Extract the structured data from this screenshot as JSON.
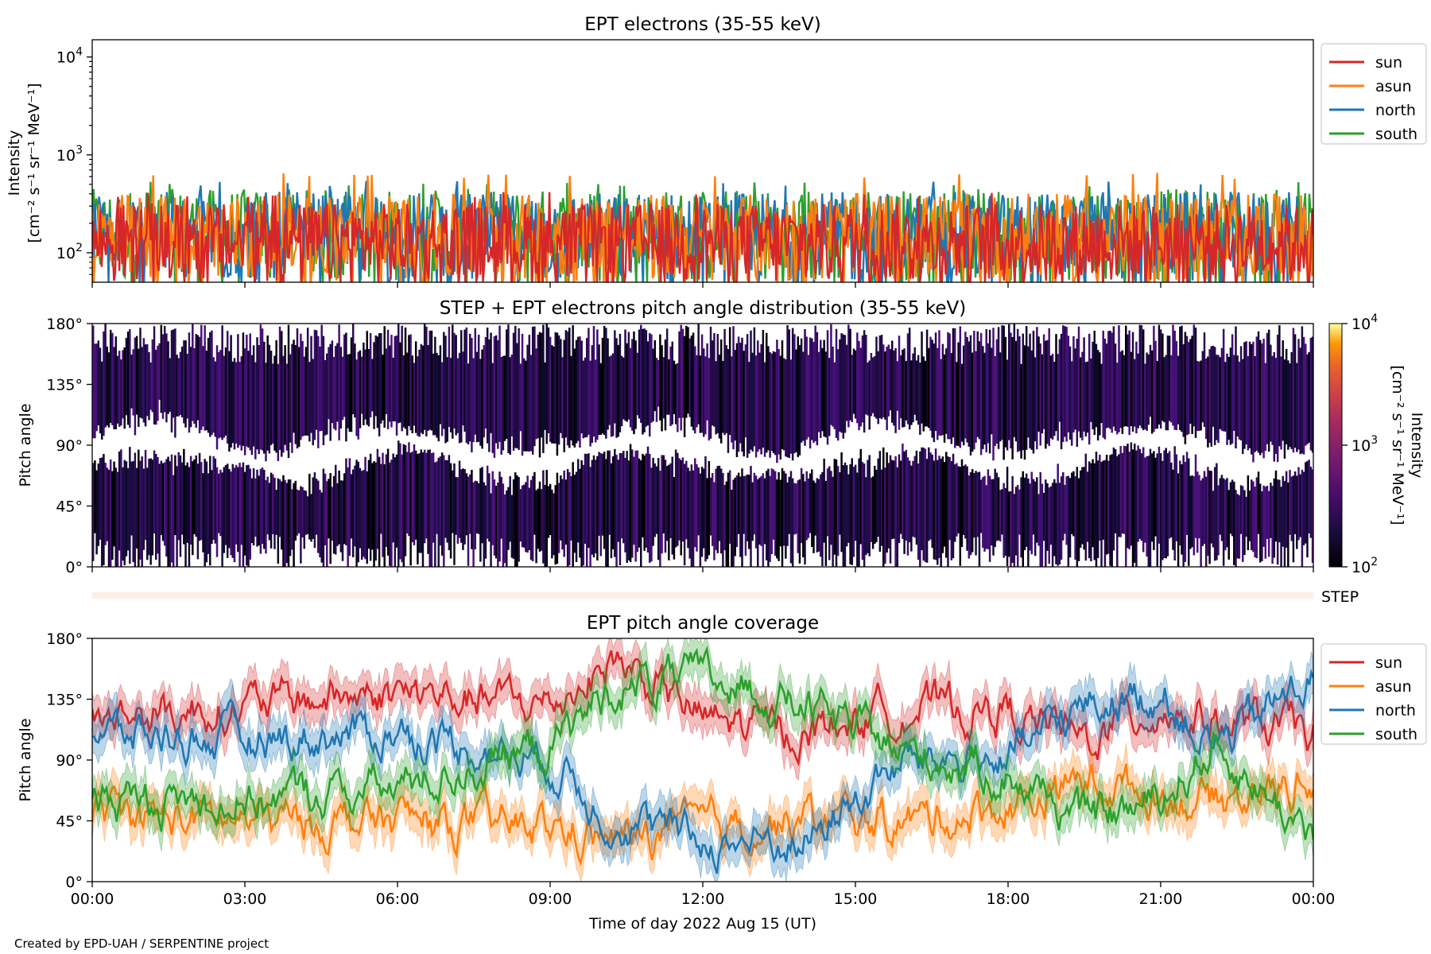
{
  "figure": {
    "credit": "Created by EPD-UAH / SERPENTINE project",
    "xlabel": "Time of day 2022 Aug 15 (UT)",
    "x_ticks": [
      "00:00",
      "03:00",
      "06:00",
      "09:00",
      "12:00",
      "15:00",
      "18:00",
      "21:00",
      "00:00"
    ]
  },
  "colors": {
    "sun": "#d62728",
    "asun": "#ff7f0e",
    "north": "#1f77b4",
    "south": "#2ca02c",
    "step_band": "#fdeee6"
  },
  "chart_data": [
    {
      "type": "line",
      "title": "EPT electrons (35-55 keV)",
      "ylabel_line1": "Intensity",
      "ylabel_line2": "[cm⁻² s⁻¹ sr⁻¹ MeV⁻¹]",
      "yscale": "log",
      "ylim": [
        50,
        15000
      ],
      "xlim_hours": [
        0,
        24
      ],
      "y_ticks": [
        {
          "value": 100,
          "base": "10",
          "exp": "2"
        },
        {
          "value": 1000,
          "base": "10",
          "exp": "3"
        },
        {
          "value": 10000,
          "base": "10",
          "exp": "4"
        }
      ],
      "legend": {
        "placement": "outside-right-top",
        "entries": [
          "sun",
          "asun",
          "north",
          "south"
        ]
      },
      "series": [
        {
          "name": "south",
          "typical_range": [
            50,
            450
          ],
          "peak": 560
        },
        {
          "name": "north",
          "typical_range": [
            50,
            420
          ],
          "peak": 560
        },
        {
          "name": "asun",
          "typical_range": [
            50,
            400
          ],
          "peak": 660
        },
        {
          "name": "sun",
          "typical_range": [
            50,
            320
          ],
          "peak": 420
        }
      ]
    },
    {
      "type": "heatmap",
      "title": "STEP + EPT electrons pitch angle distribution (35-55 keV)",
      "ylabel": "Pitch angle",
      "ylim": [
        0,
        180
      ],
      "xlim_hours": [
        0,
        24
      ],
      "y_ticks": [
        "0°",
        "45°",
        "90°",
        "135°",
        "180°"
      ],
      "colorbar": {
        "label_line1": "Intensity",
        "label_line2": "[cm⁻² s⁻¹ sr⁻¹ MeV⁻¹]",
        "range": [
          100,
          10000
        ],
        "ticks": [
          {
            "value": 100,
            "base": "10",
            "exp": "2"
          },
          {
            "value": 1000,
            "base": "10",
            "exp": "3"
          },
          {
            "value": 10000,
            "base": "10",
            "exp": "4"
          }
        ],
        "colormap": "inferno"
      },
      "step_label": "STEP"
    },
    {
      "type": "line",
      "title": "EPT pitch angle coverage",
      "ylabel": "Pitch angle",
      "ylim": [
        0,
        180
      ],
      "xlim_hours": [
        0,
        24
      ],
      "y_ticks": [
        "0°",
        "45°",
        "90°",
        "135°",
        "180°"
      ],
      "legend": {
        "placement": "outside-right-top",
        "entries": [
          "sun",
          "asun",
          "north",
          "south"
        ]
      },
      "series": [
        {
          "name": "sun",
          "x": [
            0,
            3,
            6,
            9,
            10.3,
            12,
            14,
            16,
            18,
            19.5,
            21,
            22,
            24
          ],
          "y": [
            120,
            130,
            140,
            130,
            165,
            120,
            110,
            130,
            125,
            105,
            130,
            120,
            110
          ]
        },
        {
          "name": "asun",
          "x": [
            0,
            3,
            6,
            9,
            10.3,
            12,
            14,
            16,
            18,
            19.5,
            21,
            22,
            24
          ],
          "y": [
            50,
            45,
            45,
            40,
            30,
            40,
            45,
            45,
            55,
            75,
            65,
            60,
            75
          ]
        },
        {
          "name": "north",
          "x": [
            0,
            3,
            6,
            9,
            10.3,
            12,
            14,
            16,
            18,
            19.5,
            21,
            22,
            24
          ],
          "y": [
            110,
            105,
            110,
            90,
            45,
            30,
            30,
            90,
            90,
            130,
            140,
            100,
            150
          ]
        },
        {
          "name": "south",
          "x": [
            0,
            3,
            6,
            9,
            10.3,
            12,
            14,
            16,
            18,
            19.5,
            21,
            22,
            24
          ],
          "y": [
            60,
            60,
            70,
            100,
            145,
            150,
            130,
            95,
            80,
            45,
            60,
            100,
            35
          ]
        }
      ]
    }
  ]
}
